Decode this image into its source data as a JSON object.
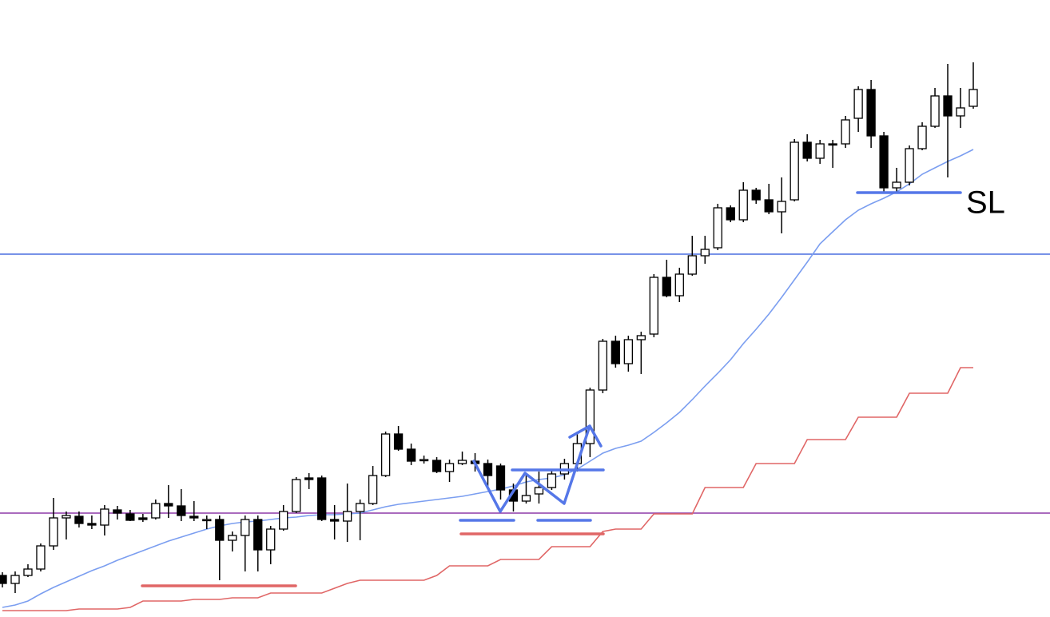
{
  "chart_data": {
    "type": "candlestick",
    "ylim": [
      0,
      772
    ],
    "open": [
      52,
      42,
      52,
      60,
      89,
      124,
      126,
      117,
      115,
      134,
      129,
      124,
      124,
      142,
      139,
      126,
      122,
      122,
      96,
      102,
      122,
      84,
      110,
      132,
      174,
      174,
      122,
      120,
      132,
      142,
      177,
      229,
      210,
      196,
      196,
      182,
      192,
      195,
      192,
      189,
      159,
      145,
      154,
      162,
      179,
      192,
      217,
      284,
      345,
      317,
      347,
      354,
      425,
      402,
      429,
      452,
      462,
      512,
      497,
      534,
      522,
      507,
      522,
      594,
      574,
      592,
      592,
      624,
      660,
      602,
      537,
      544,
      586,
      614,
      652,
      627,
      639
    ],
    "high": [
      56,
      57,
      66,
      92,
      149,
      132,
      132,
      127,
      140,
      139,
      134,
      129,
      147,
      165,
      160,
      145,
      127,
      127,
      107,
      127,
      127,
      114,
      140,
      175,
      180,
      177,
      140,
      167,
      147,
      189,
      232,
      239,
      217,
      202,
      200,
      197,
      207,
      205,
      197,
      192,
      167,
      180,
      182,
      184,
      198,
      232,
      287,
      348,
      352,
      352,
      357,
      429,
      447,
      437,
      477,
      477,
      517,
      515,
      544,
      537,
      542,
      550,
      598,
      604,
      597,
      597,
      627,
      664,
      672,
      607,
      562,
      590,
      619,
      662,
      692,
      662,
      694
    ],
    "low": [
      37,
      30,
      50,
      57,
      84,
      97,
      112,
      110,
      102,
      122,
      120,
      119,
      122,
      124,
      120,
      120,
      110,
      46,
      82,
      57,
      57,
      66,
      108,
      130,
      160,
      120,
      97,
      94,
      96,
      140,
      175,
      208,
      190,
      192,
      180,
      169,
      190,
      182,
      160,
      147,
      132,
      142,
      142,
      159,
      172,
      182,
      200,
      280,
      312,
      307,
      304,
      350,
      400,
      394,
      427,
      442,
      459,
      494,
      494,
      517,
      504,
      480,
      520,
      570,
      567,
      562,
      587,
      607,
      587,
      532,
      532,
      540,
      584,
      612,
      550,
      612,
      636
    ],
    "close": [
      42,
      52,
      60,
      89,
      124,
      127,
      117,
      115,
      135,
      130,
      121,
      122,
      142,
      139,
      127,
      124,
      122,
      96,
      102,
      122,
      84,
      110,
      132,
      172,
      172,
      122,
      120,
      132,
      142,
      177,
      229,
      210,
      195,
      197,
      182,
      192,
      196,
      192,
      177,
      159,
      145,
      152,
      162,
      179,
      192,
      217,
      284,
      345,
      317,
      347,
      352,
      425,
      402,
      429,
      452,
      460,
      512,
      497,
      534,
      522,
      507,
      520,
      594,
      574,
      592,
      591,
      622,
      660,
      602,
      537,
      544,
      586,
      614,
      652,
      627,
      637,
      660
    ],
    "up_color": "#ffffff",
    "down_color": "#000000",
    "series": [
      {
        "color": "#7b9ef0",
        "values": [
          12,
          15,
          20,
          29,
          37,
          44,
          51,
          58,
          64,
          71,
          77,
          83,
          89,
          95,
          100,
          105,
          110,
          114,
          117,
          119,
          120,
          122,
          124,
          125,
          127,
          128,
          128,
          129,
          130,
          134,
          138,
          141,
          143,
          145,
          147,
          149,
          151,
          154,
          157,
          160,
          164,
          169,
          172,
          174,
          178,
          185,
          195,
          205,
          211,
          215,
          220,
          231,
          243,
          256,
          272,
          289,
          305,
          322,
          342,
          360,
          379,
          400,
          422,
          444,
          467,
          482,
          497,
          509,
          517,
          524,
          532,
          542,
          554,
          562,
          570,
          577,
          585
        ]
      },
      {
        "color": "#e06666",
        "values": [
          8,
          8,
          8,
          8,
          8,
          8,
          10,
          10,
          10,
          10,
          12,
          20,
          20,
          20,
          20,
          22,
          22,
          22,
          24,
          24,
          24,
          30,
          30,
          30,
          30,
          30,
          36,
          42,
          46,
          46,
          46,
          46,
          46,
          46,
          52,
          64,
          64,
          64,
          64,
          72,
          72,
          72,
          72,
          88,
          88,
          88,
          88,
          107,
          110,
          110,
          110,
          129,
          129,
          129,
          129,
          162,
          162,
          162,
          162,
          192,
          192,
          192,
          192,
          222,
          222,
          222,
          222,
          250,
          250,
          250,
          250,
          280,
          280,
          280,
          280,
          312,
          312
        ]
      }
    ],
    "hlines": [
      {
        "value": 454,
        "color": "#4a6ee0"
      },
      {
        "value": 130,
        "color": "#8e3aa8"
      }
    ],
    "annotation": "SL"
  }
}
